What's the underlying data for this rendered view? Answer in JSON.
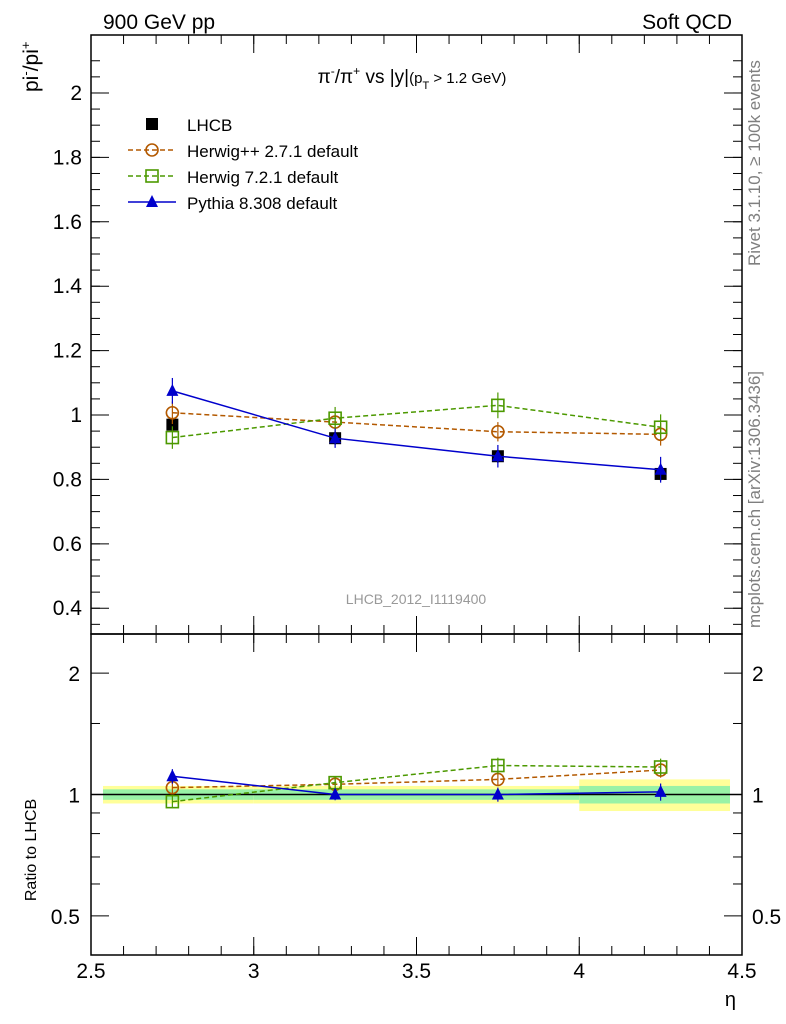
{
  "header": {
    "left": "900 GeV pp",
    "right": "Soft QCD"
  },
  "side": {
    "rivet": "Rivet 3.1.10, ≥ 100k events",
    "mcplots": "mcplots.cern.ch [arXiv:1306.3436]"
  },
  "chart_data": {
    "type": "line",
    "title_parts": {
      "pi": "π",
      "minus": "-",
      "slash": "/π",
      "plus": "+",
      "vs": " vs |y|",
      "cut_open": "(p",
      "cut_sub": "T",
      "cut_close": " > 1.2 GeV)"
    },
    "ylabel_main": "pi",
    "ylabel_main_sup1": "-",
    "ylabel_main_mid": "/pi",
    "ylabel_main_sup2": "+",
    "ylabel_ratio": "Ratio to LHCB",
    "xlabel": "η",
    "watermark": "LHCB_2012_I1119400",
    "xlim": [
      2.5,
      4.5
    ],
    "ylim_main": [
      0.32,
      2.18
    ],
    "ylim_ratio_log": [
      0.4,
      2.5
    ],
    "x_ticks": [
      "2.5",
      "3",
      "3.5",
      "4",
      "4.5"
    ],
    "y_ticks_main": [
      "0.4",
      "0.6",
      "0.8",
      "1",
      "1.2",
      "1.4",
      "1.6",
      "1.8",
      "2"
    ],
    "y_ticks_ratio": [
      "0.5",
      "1",
      "2"
    ],
    "x": [
      2.75,
      3.25,
      3.75,
      4.25
    ],
    "bin_edges": [
      2.5,
      3.0,
      3.5,
      4.0,
      4.5
    ],
    "data": {
      "name": "LHCB",
      "values": [
        0.97,
        0.928,
        0.872,
        0.817
      ],
      "errors": [
        0.02,
        0.02,
        0.02,
        0.02
      ],
      "ratio_band_inner": [
        0.03,
        0.03,
        0.03,
        0.05
      ],
      "ratio_band_outer": [
        0.05,
        0.05,
        0.05,
        0.09
      ]
    },
    "series": [
      {
        "name": "Herwig++ 2.7.1 default",
        "values": [
          1.007,
          0.978,
          0.948,
          0.94
        ],
        "errors": [
          0.035,
          0.03,
          0.03,
          0.035
        ],
        "ratio": [
          1.04,
          1.06,
          1.09,
          1.15
        ],
        "color": "#b35900",
        "marker": "circle",
        "dash": "5,3"
      },
      {
        "name": "Herwig 7.2.1 default",
        "values": [
          0.93,
          0.99,
          1.03,
          0.962
        ],
        "errors": [
          0.035,
          0.035,
          0.04,
          0.04
        ],
        "ratio": [
          0.96,
          1.07,
          1.18,
          1.17
        ],
        "color": "#4c9900",
        "marker": "square",
        "dash": "5,3"
      },
      {
        "name": "Pythia 8.308 default",
        "values": [
          1.075,
          0.928,
          0.872,
          0.83
        ],
        "errors": [
          0.04,
          0.03,
          0.035,
          0.04
        ],
        "ratio": [
          1.11,
          1.0,
          1.0,
          1.015
        ],
        "color": "#0000cc",
        "marker": "triangle",
        "dash": ""
      }
    ],
    "legend_position": "top-left",
    "grid": false
  }
}
